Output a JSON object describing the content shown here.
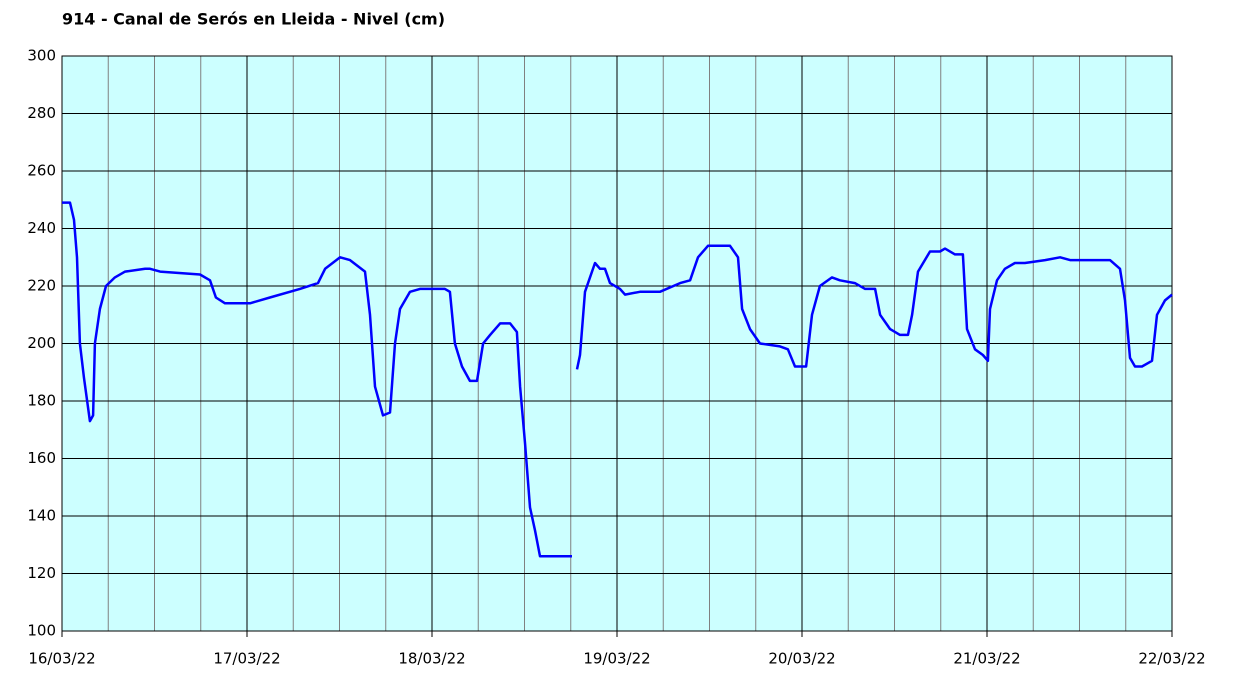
{
  "chart_data": {
    "type": "line",
    "title": "914 - Canal de Serós en Lleida - Nivel (cm)",
    "x": [
      0,
      0.043,
      0.065,
      0.081,
      0.097,
      0.119,
      0.151,
      0.168,
      0.178,
      0.205,
      0.238,
      0.286,
      0.341,
      0.449,
      0.476,
      0.53,
      0.746,
      0.8,
      0.832,
      0.881,
      1.016,
      1.124,
      1.286,
      1.384,
      1.422,
      1.503,
      1.557,
      1.638,
      1.665,
      1.692,
      1.735,
      1.773,
      1.8,
      1.827,
      1.881,
      1.935,
      2.07,
      2.097,
      2.124,
      2.162,
      2.205,
      2.243,
      2.276,
      2.314,
      2.368,
      2.422,
      2.459,
      2.476,
      2.503,
      2.53,
      2.557,
      2.584,
      2.757,
      2.76,
      2.784,
      2.8,
      2.827,
      2.881,
      2.908,
      2.935,
      2.962,
      3.016,
      3.043,
      3.124,
      3.232,
      3.341,
      3.395,
      3.438,
      3.492,
      3.611,
      3.654,
      3.676,
      3.719,
      3.773,
      3.881,
      3.924,
      3.962,
      4.022,
      4.054,
      4.097,
      4.162,
      4.205,
      4.286,
      4.341,
      4.395,
      4.422,
      4.476,
      4.53,
      4.573,
      4.595,
      4.627,
      4.692,
      4.746,
      4.773,
      4.827,
      4.87,
      4.892,
      4.935,
      4.978,
      5.005,
      5.016,
      5.054,
      5.097,
      5.151,
      5.205,
      5.314,
      5.395,
      5.449,
      5.665,
      5.719,
      5.746,
      5.773,
      5.8,
      5.838,
      5.892,
      5.919,
      5.962,
      6
    ],
    "values": [
      249,
      249,
      243,
      230,
      200,
      188,
      173,
      175,
      200,
      212,
      220,
      223,
      225,
      226,
      226,
      225,
      224,
      222,
      216,
      214,
      214,
      216,
      219,
      221,
      226,
      230,
      229,
      225,
      210,
      185,
      175,
      176,
      200,
      212,
      218,
      219,
      219,
      218,
      200,
      192,
      187,
      187,
      200,
      203,
      207,
      207,
      204,
      185,
      165,
      143,
      135,
      126,
      126,
      null,
      191,
      196,
      218,
      228,
      226,
      226,
      221,
      219,
      217,
      218,
      218,
      221,
      222,
      230,
      234,
      234,
      230,
      212,
      205,
      200,
      199,
      198,
      192,
      192,
      210,
      220,
      223,
      222,
      221,
      219,
      219,
      210,
      205,
      203,
      203,
      210,
      225,
      232,
      232,
      233,
      231,
      231,
      205,
      198,
      196,
      194,
      212,
      222,
      226,
      228,
      228,
      229,
      230,
      229,
      229,
      226,
      215,
      195,
      192,
      192,
      194,
      210,
      215,
      217
    ],
    "color": "#0000ff",
    "xlim": [
      0,
      6
    ],
    "xticks": [
      {
        "value": 0,
        "label": "16/03/22"
      },
      {
        "value": 1,
        "label": "17/03/22"
      },
      {
        "value": 2,
        "label": "18/03/22"
      },
      {
        "value": 3,
        "label": "19/03/22"
      },
      {
        "value": 4,
        "label": "20/03/22"
      },
      {
        "value": 5,
        "label": "21/03/22"
      },
      {
        "value": 6,
        "label": "22/03/22"
      }
    ],
    "xminorticks": [
      0.25,
      0.5,
      0.75,
      1.25,
      1.5,
      1.75,
      2.25,
      2.5,
      2.75,
      3.25,
      3.5,
      3.75,
      4.25,
      4.5,
      4.75,
      5.25,
      5.5,
      5.75
    ],
    "ylim": [
      100,
      300
    ],
    "yticks": [
      100,
      120,
      140,
      160,
      180,
      200,
      220,
      240,
      260,
      280,
      300
    ],
    "grid": true
  }
}
